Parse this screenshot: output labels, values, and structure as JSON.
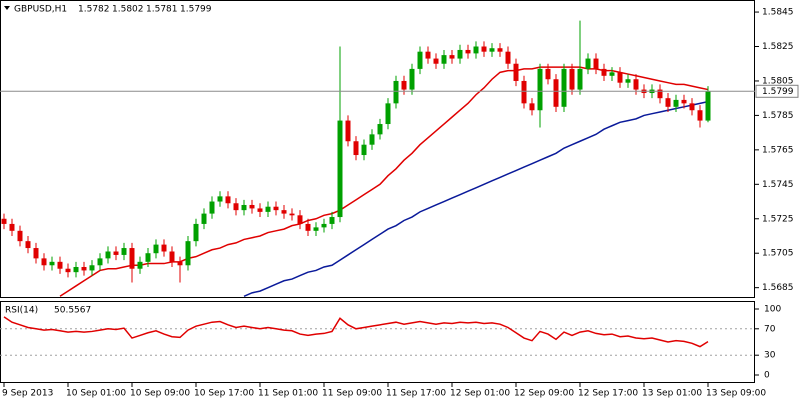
{
  "chart_data": [
    {
      "type": "candlestick",
      "title": "GBPUSD,H1",
      "categories": [
        "9 Sep 2013",
        null,
        null,
        null,
        null,
        null,
        null,
        null,
        "10 Sep 01:00",
        null,
        null,
        null,
        null,
        null,
        null,
        null,
        "10 Sep 09:00",
        null,
        null,
        null,
        null,
        null,
        null,
        null,
        "10 Sep 17:00",
        null,
        null,
        null,
        null,
        null,
        null,
        null,
        "11 Sep 01:00",
        null,
        null,
        null,
        null,
        null,
        null,
        null,
        "11 Sep 09:00",
        null,
        null,
        null,
        null,
        null,
        null,
        null,
        "11 Sep 17:00",
        null,
        null,
        null,
        null,
        null,
        null,
        null,
        "12 Sep 01:00",
        null,
        null,
        null,
        null,
        null,
        null,
        null,
        "12 Sep 09:00",
        null,
        null,
        null,
        null,
        null,
        null,
        null,
        "12 Sep 17:00",
        null,
        null,
        null,
        null,
        null,
        null,
        null,
        "13 Sep 01:00",
        null,
        null,
        null,
        null,
        null,
        null,
        null,
        "13 Sep 09:00"
      ],
      "open": [
        1.5725,
        1.5722,
        1.5718,
        1.5712,
        1.5708,
        1.5702,
        1.5698,
        1.57,
        1.5696,
        1.5694,
        1.5697,
        1.5695,
        1.5698,
        1.5702,
        1.5706,
        1.5704,
        1.5708,
        1.5696,
        1.57,
        1.5705,
        1.571,
        1.5706,
        1.57,
        1.5698,
        1.5712,
        1.5722,
        1.5728,
        1.5735,
        1.5738,
        1.5734,
        1.573,
        1.5733,
        1.5731,
        1.5729,
        1.5732,
        1.573,
        1.5728,
        1.5727,
        1.5722,
        1.5718,
        1.572,
        1.5722,
        1.5726,
        1.5782,
        1.577,
        1.5762,
        1.5768,
        1.5774,
        1.578,
        1.5792,
        1.5805,
        1.58,
        1.5812,
        1.5822,
        1.5818,
        1.5815,
        1.582,
        1.5818,
        1.5823,
        1.5821,
        1.5825,
        1.5822,
        1.5824,
        1.5822,
        1.5815,
        1.5805,
        1.5792,
        1.5788,
        1.5812,
        1.5806,
        1.579,
        1.5812,
        1.58,
        1.5812,
        1.5818,
        1.5812,
        1.5808,
        1.581,
        1.5804,
        1.5806,
        1.58,
        1.5798,
        1.58,
        1.5795,
        1.579,
        1.5794,
        1.5792,
        1.5788,
        1.5782
      ],
      "high": [
        1.5728,
        1.5725,
        1.5721,
        1.5715,
        1.5711,
        1.5705,
        1.5703,
        1.5703,
        1.5699,
        1.57,
        1.57,
        1.5701,
        1.5705,
        1.5709,
        1.5709,
        1.5711,
        1.5711,
        1.5703,
        1.5708,
        1.5713,
        1.5713,
        1.5709,
        1.5703,
        1.5715,
        1.5725,
        1.5731,
        1.5738,
        1.5741,
        1.5741,
        1.5737,
        1.5736,
        1.5736,
        1.5734,
        1.5735,
        1.5735,
        1.5733,
        1.5731,
        1.573,
        1.5725,
        1.5723,
        1.5725,
        1.5729,
        1.5825,
        1.5785,
        1.5773,
        1.5771,
        1.5777,
        1.5783,
        1.5795,
        1.5808,
        1.5808,
        1.5815,
        1.5825,
        1.5825,
        1.5821,
        1.5823,
        1.5823,
        1.5826,
        1.5826,
        1.5828,
        1.5828,
        1.5827,
        1.5827,
        1.5825,
        1.5818,
        1.5808,
        1.5795,
        1.5815,
        1.5815,
        1.5809,
        1.5815,
        1.5815,
        1.584,
        1.5821,
        1.5821,
        1.5815,
        1.5813,
        1.5813,
        1.5809,
        1.5809,
        1.5803,
        1.5803,
        1.5803,
        1.5798,
        1.5797,
        1.5797,
        1.5795,
        1.5791,
        1.5802
      ],
      "low": [
        1.5719,
        1.5715,
        1.5709,
        1.5705,
        1.5699,
        1.5695,
        1.5695,
        1.5693,
        1.5691,
        1.5691,
        1.5692,
        1.5692,
        1.5695,
        1.5699,
        1.5701,
        1.5701,
        1.5688,
        1.5693,
        1.5697,
        1.5702,
        1.5703,
        1.5697,
        1.5688,
        1.5695,
        1.5709,
        1.5719,
        1.5725,
        1.5732,
        1.5731,
        1.5727,
        1.5727,
        1.5728,
        1.5726,
        1.5726,
        1.5727,
        1.5725,
        1.5724,
        1.5719,
        1.5715,
        1.5715,
        1.5717,
        1.5719,
        1.5723,
        1.5767,
        1.5759,
        1.5759,
        1.5765,
        1.5771,
        1.5777,
        1.5789,
        1.5797,
        1.5797,
        1.5809,
        1.5815,
        1.5812,
        1.5812,
        1.5815,
        1.5815,
        1.5818,
        1.5818,
        1.5819,
        1.5819,
        1.5819,
        1.5812,
        1.5802,
        1.5789,
        1.5785,
        1.5778,
        1.5803,
        1.5787,
        1.5787,
        1.5797,
        1.5797,
        1.5809,
        1.5809,
        1.5805,
        1.5805,
        1.5801,
        1.5801,
        1.5797,
        1.5795,
        1.5795,
        1.5792,
        1.5787,
        1.5787,
        1.5789,
        1.5785,
        1.5778,
        1.5781
      ],
      "close": [
        1.5722,
        1.5718,
        1.5712,
        1.5708,
        1.5702,
        1.5698,
        1.57,
        1.5696,
        1.5694,
        1.5697,
        1.5695,
        1.5698,
        1.5702,
        1.5706,
        1.5704,
        1.5708,
        1.5696,
        1.57,
        1.5705,
        1.571,
        1.5706,
        1.57,
        1.5698,
        1.5712,
        1.5722,
        1.5728,
        1.5735,
        1.5738,
        1.5734,
        1.573,
        1.5733,
        1.5731,
        1.5729,
        1.5732,
        1.573,
        1.5728,
        1.5727,
        1.5722,
        1.5718,
        1.572,
        1.5722,
        1.5726,
        1.5782,
        1.577,
        1.5762,
        1.5768,
        1.5774,
        1.578,
        1.5792,
        1.5805,
        1.58,
        1.5812,
        1.5822,
        1.5818,
        1.5815,
        1.582,
        1.5818,
        1.5823,
        1.5821,
        1.5825,
        1.5822,
        1.5824,
        1.5822,
        1.5815,
        1.5805,
        1.5792,
        1.5788,
        1.5812,
        1.5806,
        1.579,
        1.5812,
        1.58,
        1.5812,
        1.5818,
        1.5812,
        1.5808,
        1.581,
        1.5804,
        1.5806,
        1.58,
        1.5798,
        1.58,
        1.5795,
        1.579,
        1.5794,
        1.5792,
        1.5788,
        1.5782,
        1.5799
      ],
      "up_color": "#00a000",
      "down_color": "#e00000",
      "overlays": [
        {
          "color": "#e00000",
          "values": [
            null,
            null,
            null,
            null,
            null,
            null,
            null,
            1.568,
            1.5683,
            1.5686,
            1.5689,
            1.5692,
            1.5695,
            1.5696,
            1.5696,
            1.5697,
            1.5698,
            1.5698,
            1.5699,
            1.5699,
            1.5699,
            1.57,
            1.57,
            1.5702,
            1.5703,
            1.5705,
            1.5707,
            1.5708,
            1.571,
            1.5711,
            1.5713,
            1.5714,
            1.5715,
            1.5717,
            1.5718,
            1.5719,
            1.5721,
            1.5722,
            1.5724,
            1.5725,
            1.5727,
            1.5728,
            1.573,
            1.5733,
            1.5736,
            1.5739,
            1.5742,
            1.5745,
            1.575,
            1.5754,
            1.5759,
            1.5763,
            1.5768,
            1.5772,
            1.5776,
            1.578,
            1.5784,
            1.5788,
            1.5792,
            1.5797,
            1.5801,
            1.5806,
            1.581,
            1.5811,
            1.5811,
            1.5812,
            1.5812,
            1.5813,
            1.5813,
            1.5813,
            1.5813,
            1.5813,
            1.5813,
            1.5812,
            1.5812,
            1.5811,
            1.5811,
            1.581,
            1.5809,
            1.5808,
            1.5807,
            1.5806,
            1.5805,
            1.5804,
            1.5803,
            1.5803,
            1.5802,
            1.5801,
            1.58
          ]
        },
        {
          "color": "#0a1a9a",
          "values": [
            null,
            null,
            null,
            null,
            null,
            null,
            null,
            null,
            null,
            null,
            null,
            null,
            null,
            null,
            null,
            null,
            null,
            null,
            null,
            null,
            null,
            null,
            null,
            null,
            null,
            null,
            null,
            null,
            null,
            null,
            1.568,
            1.5682,
            1.5683,
            1.5685,
            1.5687,
            1.5689,
            1.569,
            1.5692,
            1.5694,
            1.5695,
            1.5697,
            1.5698,
            1.5701,
            1.5704,
            1.5707,
            1.571,
            1.5713,
            1.5716,
            1.5719,
            1.5721,
            1.5724,
            1.5726,
            1.5729,
            1.5731,
            1.5733,
            1.5735,
            1.5737,
            1.5739,
            1.5741,
            1.5743,
            1.5745,
            1.5747,
            1.5749,
            1.5751,
            1.5753,
            1.5755,
            1.5757,
            1.5759,
            1.5761,
            1.5763,
            1.5766,
            1.5768,
            1.577,
            1.5772,
            1.5774,
            1.5777,
            1.5779,
            1.5781,
            1.5782,
            1.5783,
            1.5785,
            1.5786,
            1.5787,
            1.5788,
            1.5789,
            1.579,
            1.5791,
            1.5792,
            1.5793
          ]
        }
      ],
      "ylim": [
        1.5679,
        1.5852
      ],
      "yticks": [
        1.5685,
        1.5705,
        1.5725,
        1.5745,
        1.5765,
        1.5785,
        1.5805,
        1.5825,
        1.5845
      ]
    },
    {
      "type": "line",
      "series": [
        {
          "name": "RSI(14)",
          "color": "#e00000",
          "values": [
            88,
            80,
            76,
            72,
            70,
            68,
            69,
            67,
            65,
            66,
            65,
            66,
            68,
            70,
            69,
            71,
            56,
            60,
            64,
            67,
            62,
            58,
            57,
            68,
            74,
            77,
            80,
            81,
            76,
            72,
            74,
            72,
            70,
            72,
            70,
            68,
            67,
            62,
            60,
            62,
            63,
            66,
            86,
            76,
            70,
            72,
            74,
            76,
            78,
            80,
            77,
            79,
            81,
            79,
            77,
            79,
            78,
            80,
            79,
            80,
            78,
            79,
            77,
            72,
            64,
            56,
            52,
            66,
            62,
            54,
            65,
            60,
            65,
            67,
            63,
            61,
            62,
            58,
            59,
            56,
            55,
            56,
            53,
            50,
            52,
            51,
            48,
            43,
            50.5567
          ]
        }
      ],
      "ylim": [
        0,
        100
      ],
      "yticks": [
        0,
        30,
        70,
        100
      ]
    }
  ]
}
